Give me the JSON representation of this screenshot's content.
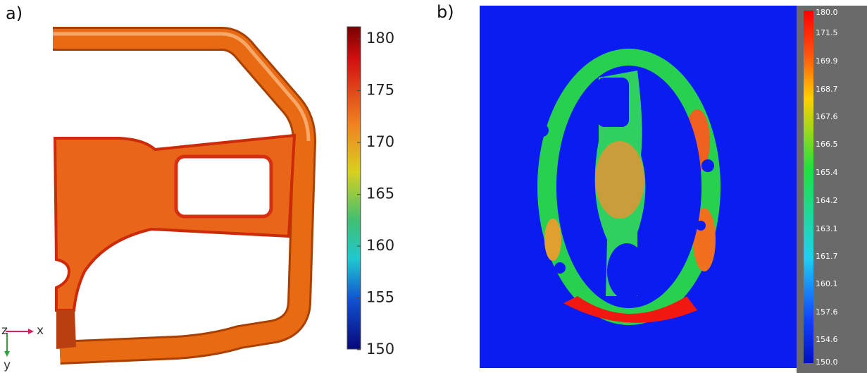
{
  "panels": [
    {
      "label": "a)",
      "axes": {
        "z": "z",
        "x": "x",
        "y": "y"
      },
      "colorbar": {
        "ticks": [
          "180",
          "175",
          "170",
          "165",
          "160",
          "155",
          "150"
        ]
      }
    },
    {
      "label": "b)",
      "colorbar": {
        "ticks": [
          "180.0",
          "171.5",
          "169.9",
          "168.7",
          "167.6",
          "166.5",
          "165.4",
          "164.2",
          "163.1",
          "161.7",
          "160.1",
          "157.6",
          "154.6",
          "150.0"
        ]
      }
    }
  ]
}
